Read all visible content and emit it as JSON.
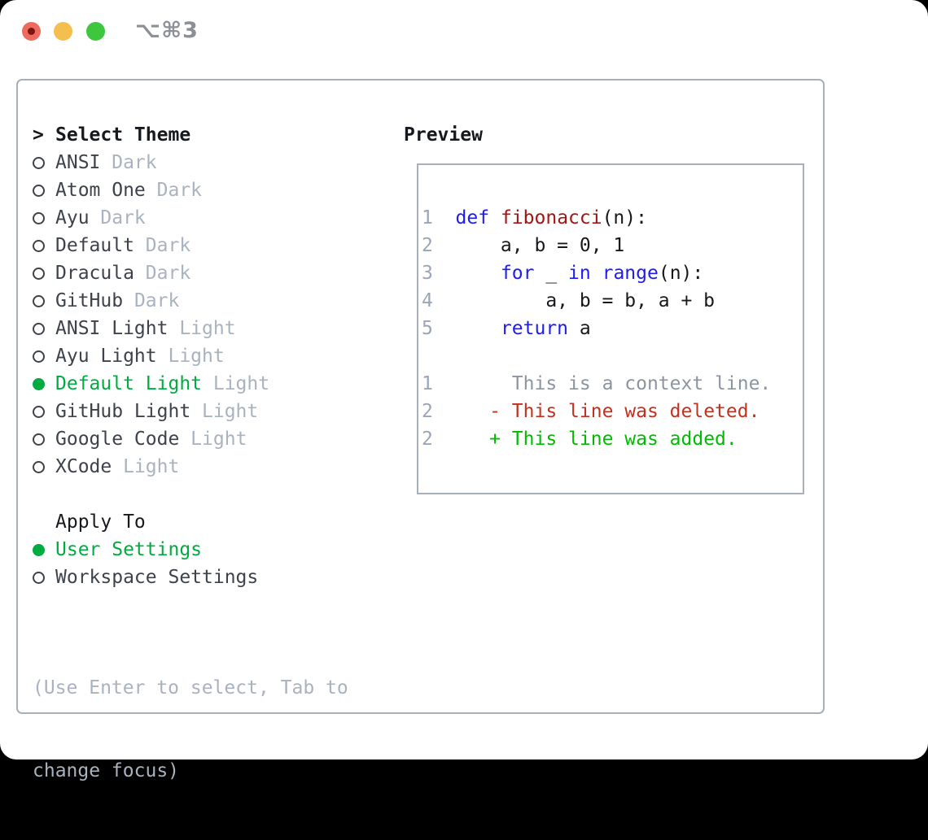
{
  "window": {
    "title": "⌥⌘3",
    "traffic_lights": [
      "close",
      "minimize",
      "zoom"
    ]
  },
  "theme_panel": {
    "header": {
      "marker": ">",
      "label": "Select Theme"
    },
    "themes": [
      {
        "name": "ANSI",
        "variant": "Dark",
        "selected": false
      },
      {
        "name": "Atom One",
        "variant": "Dark",
        "selected": false
      },
      {
        "name": "Ayu",
        "variant": "Dark",
        "selected": false
      },
      {
        "name": "Default",
        "variant": "Dark",
        "selected": false
      },
      {
        "name": "Dracula",
        "variant": "Dark",
        "selected": false
      },
      {
        "name": "GitHub",
        "variant": "Dark",
        "selected": false
      },
      {
        "name": "ANSI Light",
        "variant": "Light",
        "selected": false
      },
      {
        "name": "Ayu Light",
        "variant": "Light",
        "selected": false
      },
      {
        "name": "Default Light",
        "variant": "Light",
        "selected": true
      },
      {
        "name": "GitHub Light",
        "variant": "Light",
        "selected": false
      },
      {
        "name": "Google Code",
        "variant": "Light",
        "selected": false
      },
      {
        "name": "XCode",
        "variant": "Light",
        "selected": false
      }
    ],
    "apply_to": {
      "label": "Apply To",
      "options": [
        {
          "name": "User Settings",
          "selected": true
        },
        {
          "name": "Workspace Settings",
          "selected": false
        }
      ]
    },
    "help_lines": [
      "(Use Enter to select, Tab to",
      "change focus)"
    ]
  },
  "preview": {
    "title": "Preview",
    "lines": [
      [
        {
          "t": "1  ",
          "c": "ln"
        },
        {
          "t": "def",
          "c": "kw"
        },
        {
          "t": " ",
          "c": "pl"
        },
        {
          "t": "fibonacci",
          "c": "fn"
        },
        {
          "t": "(n):",
          "c": "pl"
        }
      ],
      [
        {
          "t": "2  ",
          "c": "ln"
        },
        {
          "t": "    a, b = 0, 1",
          "c": "pl"
        }
      ],
      [
        {
          "t": "3  ",
          "c": "ln"
        },
        {
          "t": "    ",
          "c": "pl"
        },
        {
          "t": "for",
          "c": "kw"
        },
        {
          "t": " _ ",
          "c": "pl"
        },
        {
          "t": "in",
          "c": "kw"
        },
        {
          "t": " ",
          "c": "pl"
        },
        {
          "t": "range",
          "c": "kw"
        },
        {
          "t": "(n):",
          "c": "pl"
        }
      ],
      [
        {
          "t": "4  ",
          "c": "ln"
        },
        {
          "t": "        a, b = b, a + b",
          "c": "pl"
        }
      ],
      [
        {
          "t": "5  ",
          "c": "ln"
        },
        {
          "t": "    ",
          "c": "pl"
        },
        {
          "t": "return",
          "c": "kw"
        },
        {
          "t": " a",
          "c": "pl"
        }
      ],
      [
        {
          "t": " ",
          "c": "pl"
        }
      ],
      [
        {
          "t": "1",
          "c": "ln"
        },
        {
          "t": "       This is a context line.",
          "c": "ctx"
        }
      ],
      [
        {
          "t": "2",
          "c": "ln"
        },
        {
          "t": "     ",
          "c": "pl"
        },
        {
          "t": "- This line was deleted.",
          "c": "del"
        }
      ],
      [
        {
          "t": "2",
          "c": "ln"
        },
        {
          "t": "     ",
          "c": "pl"
        },
        {
          "t": "+ This line was added.",
          "c": "add"
        }
      ]
    ]
  },
  "colors": {
    "accent_green": "#00ab41",
    "keyword_blue": "#1e1cf0",
    "function_red": "#a31515",
    "deleted_red": "#c4301f",
    "added_green": "#00bb00",
    "muted_gray": "#a9b3bf",
    "line_number_gray": "#9aa6b6",
    "context_gray": "#8c959f",
    "text_dark": "#3d424b",
    "header_black": "#16191d",
    "border_gray": "#a7afb9",
    "titlebar_gray": "#8b9096",
    "traffic_red": "#ee6a5f",
    "traffic_red_dot": "#7c1410",
    "traffic_yellow": "#f5bf4f",
    "traffic_green": "#3ec73e"
  }
}
